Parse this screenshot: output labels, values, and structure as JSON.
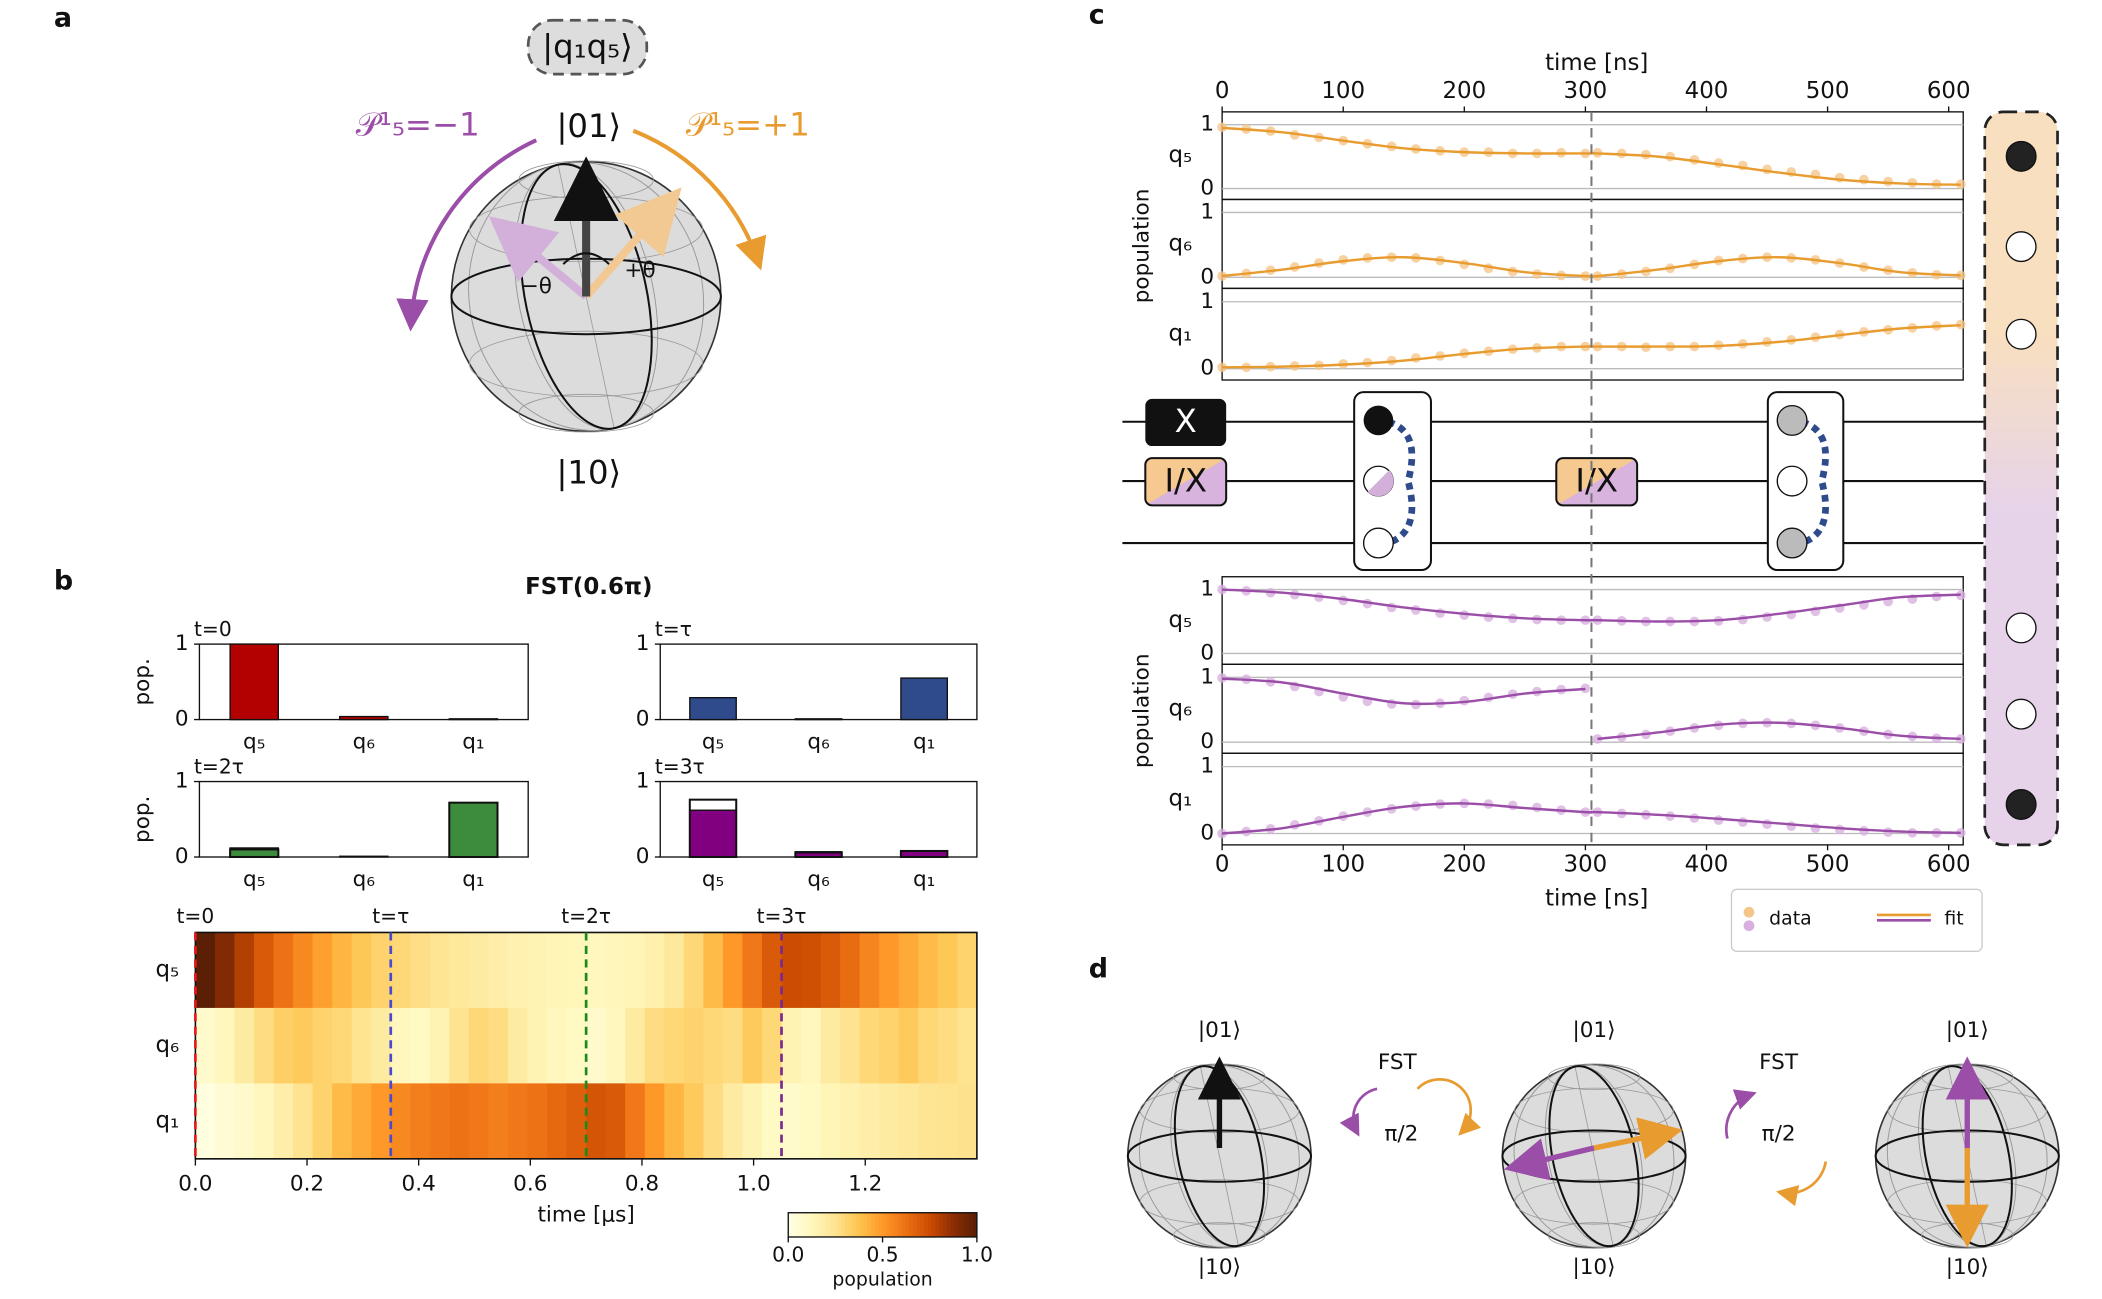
{
  "panel_labels": [
    "a",
    "b",
    "c",
    "d"
  ],
  "panel_a": {
    "state_label": "|q₁q₅⟩",
    "top": "|01⟩",
    "bottom": "|10⟩",
    "left": "𝒫¹₅=−1",
    "right": "𝒫¹₅=+1",
    "minus_theta": "−θ",
    "plus_theta": "+θ"
  },
  "panel_b_title": "FST(0.6π)",
  "circuit": {
    "gates": [
      "X",
      "I/X",
      "I/X"
    ]
  },
  "panel_d": {
    "spheres": [
      {
        "top": "|01⟩",
        "bottom": "|10⟩"
      },
      {
        "top": "|01⟩",
        "bottom": "|10⟩"
      },
      {
        "top": "|01⟩",
        "bottom": "|10⟩"
      }
    ],
    "steps": [
      {
        "name": "FST",
        "angle": "π/2"
      },
      {
        "name": "FST",
        "angle": "π/2"
      }
    ]
  },
  "chart_data": [
    {
      "type": "bar",
      "title": "t=0",
      "ylabel": "pop.",
      "categories": [
        "q₅",
        "q₆",
        "q₁"
      ],
      "values": [
        1.0,
        0.04,
        0.01
      ],
      "color": "#b30000",
      "ylim": [
        0,
        1
      ],
      "yticks": [
        0,
        1
      ]
    },
    {
      "type": "bar",
      "title": "t=τ",
      "categories": [
        "q₅",
        "q₆",
        "q₁"
      ],
      "values": [
        0.29,
        0.01,
        0.55
      ],
      "color": "#2f4b8c",
      "ylim": [
        0,
        1
      ],
      "yticks": [
        0,
        1
      ]
    },
    {
      "type": "bar",
      "title": "t=2τ",
      "ylabel": "pop.",
      "categories": [
        "q₅",
        "q₆",
        "q₁"
      ],
      "values": [
        0.12,
        0.01,
        0.72
      ],
      "ideal": [
        0.1,
        0,
        0.72
      ],
      "color": "#3d8c3d",
      "ylim": [
        0,
        1
      ],
      "yticks": [
        0,
        1
      ]
    },
    {
      "type": "bar",
      "title": "t=3τ",
      "categories": [
        "q₅",
        "q₆",
        "q₁"
      ],
      "values": [
        0.62,
        0.07,
        0.08
      ],
      "ideal": [
        0.76,
        0.06,
        0.08
      ],
      "color": "#800080",
      "ylim": [
        0,
        1
      ],
      "yticks": [
        0,
        1
      ]
    },
    {
      "type": "heatmap",
      "rows": [
        "q₅",
        "q₆",
        "q₁"
      ],
      "xlabel": "time [μs]",
      "xlim": [
        0,
        1.4
      ],
      "xticks": [
        {
          "value": 0,
          "label": "0.0"
        },
        0.2,
        0.4,
        0.6,
        0.8,
        {
          "value": 1,
          "label": "1.0"
        },
        1.2
      ],
      "values": [
        [
          1.0,
          0.9,
          0.8,
          0.7,
          0.62,
          0.55,
          0.48,
          0.42,
          0.36,
          0.32,
          0.3,
          0.27,
          0.24,
          0.22,
          0.2,
          0.18,
          0.16,
          0.15,
          0.14,
          0.13,
          0.12,
          0.13,
          0.14,
          0.17,
          0.22,
          0.3,
          0.4,
          0.5,
          0.6,
          0.7,
          0.75,
          0.74,
          0.7,
          0.64,
          0.56,
          0.5,
          0.45,
          0.4,
          0.36,
          0.32
        ],
        [
          0.08,
          0.12,
          0.2,
          0.28,
          0.33,
          0.35,
          0.32,
          0.3,
          0.25,
          0.2,
          0.12,
          0.1,
          0.15,
          0.25,
          0.3,
          0.28,
          0.2,
          0.15,
          0.12,
          0.1,
          0.08,
          0.12,
          0.2,
          0.28,
          0.3,
          0.32,
          0.3,
          0.28,
          0.35,
          0.3,
          0.15,
          0.12,
          0.2,
          0.25,
          0.3,
          0.32,
          0.35,
          0.3,
          0.28,
          0.25
        ],
        [
          0.02,
          0.05,
          0.08,
          0.12,
          0.18,
          0.25,
          0.32,
          0.4,
          0.45,
          0.5,
          0.55,
          0.58,
          0.6,
          0.62,
          0.6,
          0.58,
          0.6,
          0.62,
          0.65,
          0.68,
          0.72,
          0.7,
          0.6,
          0.5,
          0.42,
          0.35,
          0.28,
          0.2,
          0.15,
          0.1,
          0.08,
          0.1,
          0.14,
          0.16,
          0.18,
          0.2,
          0.22,
          0.24,
          0.25,
          0.26
        ]
      ],
      "colormap": [
        "#ffffe5",
        "#fff7bc",
        "#fee391",
        "#fec44f",
        "#fe9929",
        "#ec7014",
        "#cc4c02",
        "#8c2d04",
        "#5a1f04"
      ],
      "clim": [
        0,
        1
      ],
      "markers": [
        {
          "label": "t=0",
          "value": 0,
          "color": "#e41a1c"
        },
        {
          "label": "t=τ",
          "value": 0.35,
          "color": "#4a4ad0"
        },
        {
          "label": "t=2τ",
          "value": 0.7,
          "color": "#1a8a1a"
        },
        {
          "label": "t=3τ",
          "value": 1.05,
          "color": "#7b2a8c"
        }
      ],
      "colorbar": {
        "label": "population",
        "ticks": [
          {
            "value": 0,
            "label": "0.0"
          },
          0.5,
          {
            "value": 1,
            "label": "1.0"
          }
        ]
      }
    },
    {
      "type": "line",
      "xaxis": "top",
      "xlabel": "time [ns]",
      "ylabel": "population",
      "xlim": [
        0,
        612
      ],
      "xticks": [
        0,
        100,
        200,
        300,
        400,
        500,
        600
      ],
      "ylim": [
        -0.17,
        1.2
      ],
      "yticks": [
        0,
        1
      ],
      "grid": true,
      "divider": 305,
      "data_color": "#f5c68a",
      "fit_color": "#e89b2f",
      "x": [
        0,
        20,
        40,
        60,
        80,
        100,
        120,
        140,
        160,
        180,
        200,
        220,
        240,
        260,
        280,
        300,
        310,
        330,
        350,
        370,
        390,
        410,
        430,
        450,
        470,
        490,
        510,
        530,
        550,
        570,
        590,
        610
      ],
      "fit_x": [
        0,
        50,
        100,
        150,
        200,
        250,
        300,
        305,
        310,
        360,
        410,
        460,
        510,
        560,
        610
      ],
      "rows": [
        {
          "name": "q₅",
          "data": [
            0.96,
            0.93,
            0.9,
            0.84,
            0.8,
            0.75,
            0.7,
            0.66,
            0.62,
            0.59,
            0.57,
            0.57,
            0.55,
            0.55,
            0.56,
            0.55,
            0.56,
            0.55,
            0.53,
            0.5,
            0.45,
            0.4,
            0.36,
            0.3,
            0.26,
            0.22,
            0.17,
            0.14,
            0.11,
            0.09,
            0.07,
            0.07
          ],
          "fit": [
            0.95,
            0.88,
            0.75,
            0.63,
            0.57,
            0.55,
            0.55,
            0.55,
            0.55,
            0.5,
            0.38,
            0.25,
            0.14,
            0.08,
            0.06
          ]
        },
        {
          "name": "q₆",
          "data": [
            0.02,
            0.06,
            0.11,
            0.16,
            0.22,
            0.27,
            0.3,
            0.31,
            0.3,
            0.26,
            0.2,
            0.14,
            0.09,
            0.05,
            0.03,
            0.02,
            0.02,
            0.05,
            0.09,
            0.14,
            0.2,
            0.26,
            0.29,
            0.31,
            0.3,
            0.27,
            0.22,
            0.16,
            0.11,
            0.07,
            0.04,
            0.03
          ],
          "fit": [
            0.02,
            0.12,
            0.25,
            0.31,
            0.22,
            0.08,
            0.02,
            0.02,
            0.02,
            0.12,
            0.25,
            0.31,
            0.22,
            0.08,
            0.03
          ]
        },
        {
          "name": "q₁",
          "data": [
            0.02,
            0.02,
            0.03,
            0.04,
            0.05,
            0.07,
            0.09,
            0.12,
            0.16,
            0.19,
            0.23,
            0.26,
            0.29,
            0.31,
            0.33,
            0.33,
            0.33,
            0.33,
            0.32,
            0.33,
            0.33,
            0.35,
            0.37,
            0.4,
            0.43,
            0.47,
            0.51,
            0.55,
            0.58,
            0.61,
            0.64,
            0.66
          ],
          "fit": [
            0.02,
            0.03,
            0.06,
            0.12,
            0.22,
            0.3,
            0.33,
            0.33,
            0.33,
            0.33,
            0.34,
            0.4,
            0.5,
            0.6,
            0.65
          ]
        }
      ]
    },
    {
      "type": "line",
      "xaxis": "bottom",
      "xlabel": "time [ns]",
      "ylabel": "population",
      "xlim": [
        0,
        612
      ],
      "xticks": [
        0,
        100,
        200,
        300,
        400,
        500,
        600
      ],
      "ylim": [
        -0.17,
        1.2
      ],
      "yticks": [
        0,
        1
      ],
      "grid": true,
      "divider": 305,
      "data_color": "#d8b0df",
      "fit_color": "#9b4ea8",
      "legend_labels": [
        "data",
        "fit"
      ],
      "x": [
        0,
        20,
        40,
        60,
        80,
        100,
        120,
        140,
        160,
        180,
        200,
        220,
        240,
        260,
        280,
        300,
        310,
        330,
        350,
        370,
        390,
        410,
        430,
        450,
        470,
        490,
        510,
        530,
        550,
        570,
        590,
        610
      ],
      "fit_x": [
        0,
        50,
        100,
        150,
        200,
        250,
        300,
        305,
        310,
        360,
        410,
        460,
        510,
        560,
        610
      ],
      "rows": [
        {
          "name": "q₅",
          "data": [
            1.0,
            0.98,
            0.95,
            0.92,
            0.88,
            0.83,
            0.78,
            0.72,
            0.68,
            0.63,
            0.6,
            0.57,
            0.55,
            0.53,
            0.52,
            0.52,
            0.52,
            0.51,
            0.5,
            0.5,
            0.5,
            0.51,
            0.53,
            0.57,
            0.61,
            0.66,
            0.71,
            0.76,
            0.81,
            0.85,
            0.89,
            0.91
          ],
          "fit": [
            1.0,
            0.95,
            0.85,
            0.72,
            0.62,
            0.55,
            0.52,
            0.52,
            0.52,
            0.5,
            0.52,
            0.62,
            0.75,
            0.88,
            0.92
          ]
        },
        {
          "name": "q₆",
          "data": [
            0.99,
            0.97,
            0.93,
            0.86,
            0.78,
            0.7,
            0.63,
            0.59,
            0.58,
            0.6,
            0.64,
            0.69,
            0.74,
            0.78,
            0.81,
            0.83,
            0.05,
            0.08,
            0.12,
            0.17,
            0.22,
            0.26,
            0.29,
            0.3,
            0.29,
            0.26,
            0.22,
            0.17,
            0.12,
            0.09,
            0.06,
            0.05
          ],
          "fit": [
            0.98,
            0.92,
            0.75,
            0.6,
            0.62,
            0.75,
            0.82,
            null,
            0.05,
            0.15,
            0.27,
            0.3,
            0.22,
            0.1,
            0.05
          ]
        },
        {
          "name": "q₁",
          "data": [
            0.0,
            0.03,
            0.07,
            0.13,
            0.19,
            0.26,
            0.32,
            0.37,
            0.41,
            0.44,
            0.45,
            0.44,
            0.42,
            0.39,
            0.35,
            0.32,
            0.32,
            0.3,
            0.28,
            0.26,
            0.23,
            0.2,
            0.17,
            0.14,
            0.11,
            0.08,
            0.06,
            0.04,
            0.02,
            0.01,
            0.01,
            0.01
          ],
          "fit": [
            0.0,
            0.08,
            0.25,
            0.4,
            0.45,
            0.38,
            0.32,
            0.32,
            0.32,
            0.28,
            0.22,
            0.15,
            0.08,
            0.03,
            0.01
          ]
        }
      ]
    }
  ]
}
